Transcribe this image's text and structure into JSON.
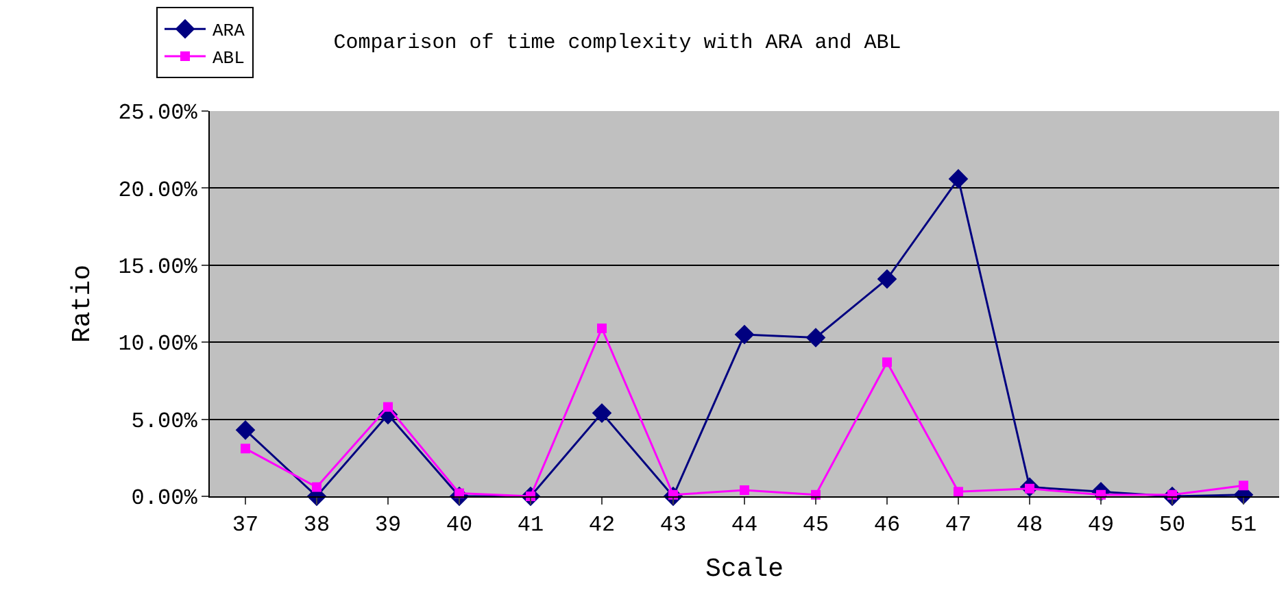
{
  "chart_data": {
    "type": "line",
    "title": "Comparison of time complexity with ARA and ABL",
    "xlabel": "Scale",
    "ylabel": "Ratio",
    "categories": [
      "37",
      "38",
      "39",
      "40",
      "41",
      "42",
      "43",
      "44",
      "45",
      "46",
      "47",
      "48",
      "49",
      "50",
      "51"
    ],
    "series": [
      {
        "name": "ARA",
        "color": "#000080",
        "marker": "diamond",
        "values": [
          4.3,
          0,
          5.3,
          0,
          0,
          5.4,
          0,
          10.5,
          10.3,
          14.1,
          20.6,
          0.6,
          0.3,
          0,
          0.1
        ]
      },
      {
        "name": "ABL",
        "color": "#ff00ff",
        "marker": "square",
        "values": [
          3.1,
          0.6,
          5.8,
          0.2,
          0,
          10.9,
          0.1,
          0.4,
          0.1,
          8.7,
          0.3,
          0.5,
          0.1,
          0.1,
          0.7
        ]
      }
    ],
    "ylim": [
      0,
      25
    ],
    "yticks": [
      {
        "value": 0,
        "label": "0.00%"
      },
      {
        "value": 5,
        "label": "5.00%"
      },
      {
        "value": 10,
        "label": "10.00%"
      },
      {
        "value": 15,
        "label": "15.00%"
      },
      {
        "value": 20,
        "label": "20.00%"
      },
      {
        "value": 25,
        "label": "25.00%"
      }
    ],
    "grid": "y",
    "legend": "top left"
  }
}
